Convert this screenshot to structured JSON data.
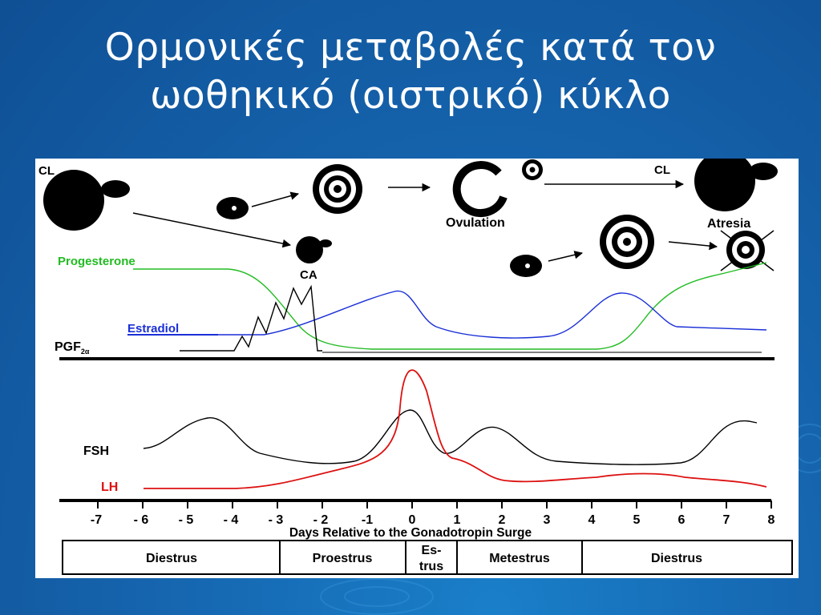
{
  "title": {
    "line1": "Ορμονικές μεταβολές κατά τον",
    "line2": "ωοθηκικό (οιστρικό)  κύκλο"
  },
  "diagram": {
    "top_labels": {
      "cl_left": "CL",
      "ovulation": "Ovulation",
      "cl_right": "CL",
      "atresia": "Atresia",
      "ca": "CA"
    },
    "hormones": {
      "progesterone": "Progesterone",
      "estradiol": "Estradiol",
      "pgf": "PGF",
      "pgf_sub": "2α",
      "fsh": "FSH",
      "lh": "LH"
    },
    "colors": {
      "progesterone": "#22bb22",
      "estradiol": "#1a2fd6",
      "lh": "#dd1111",
      "fsh": "#000000",
      "pgf": "#000000"
    },
    "x_axis": {
      "ticks": [
        "-7",
        "- 6",
        "- 5",
        "- 4",
        "- 3",
        "- 2",
        "-1",
        "0",
        "1",
        "2",
        "3",
        "4",
        "5",
        "6",
        "7",
        "8"
      ],
      "label": "Days Relative to the Gonadotropin Surge"
    },
    "phases": [
      {
        "name": "Diestrus"
      },
      {
        "name": "Proestrus"
      },
      {
        "name_line1": "Es-",
        "name_line2": "trus"
      },
      {
        "name": "Metestrus"
      },
      {
        "name": "Diestrus"
      }
    ]
  }
}
